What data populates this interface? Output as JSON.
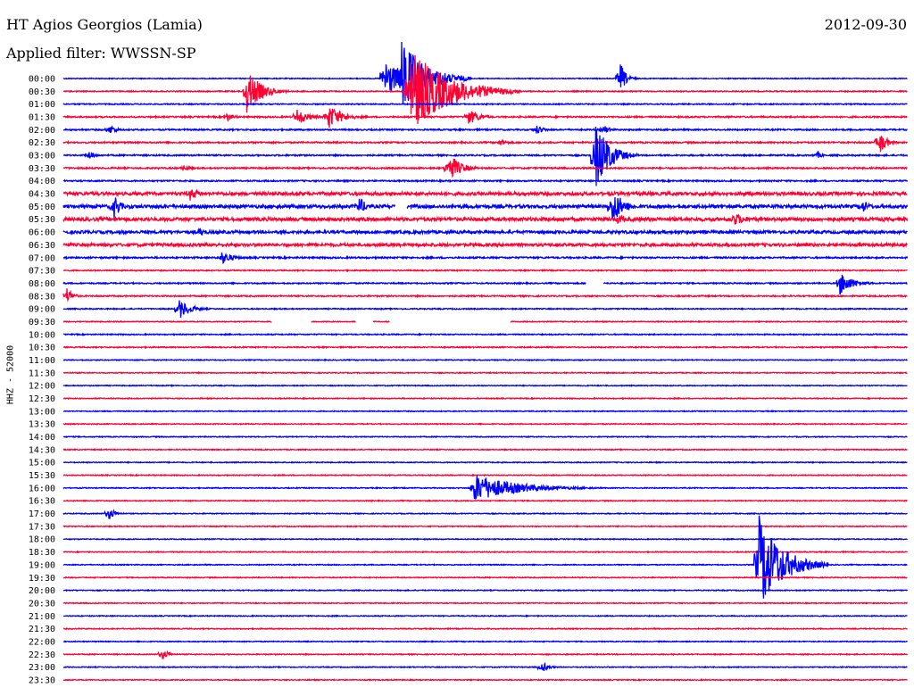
{
  "header": {
    "station": "HT Agios Georgios (Lamia)",
    "date": "2012-09-30",
    "filter": "Applied filter: WWSSN-SP"
  },
  "channel_label": "HHZ - 52000",
  "colors": {
    "even_hour": "#0000ff",
    "half_hour": "#ff0033",
    "background": "#ffffff"
  },
  "chart_data": {
    "type": "line",
    "description_kind": "helicorder",
    "ylabel": "HHZ - 52000",
    "rows": [
      "00:00",
      "00:30",
      "01:00",
      "01:30",
      "02:00",
      "02:30",
      "03:00",
      "03:30",
      "04:00",
      "04:30",
      "05:00",
      "05:30",
      "06:00",
      "06:30",
      "07:00",
      "07:30",
      "08:00",
      "08:30",
      "09:00",
      "09:30",
      "10:00",
      "10:30",
      "11:00",
      "11:30",
      "12:00",
      "12:30",
      "13:00",
      "13:30",
      "14:00",
      "14:30",
      "15:00",
      "15:30",
      "16:00",
      "16:30",
      "17:00",
      "17:30",
      "18:00",
      "18:30",
      "19:00",
      "19:30",
      "20:00",
      "20:30",
      "21:00",
      "21:30",
      "22:00",
      "22:30",
      "23:00",
      "23:30"
    ],
    "row_span_minutes": 30,
    "noise_level": [
      0.5,
      0.6,
      0.6,
      0.8,
      0.8,
      0.8,
      0.8,
      0.8,
      0.8,
      1.8,
      1.8,
      1.9,
      1.6,
      1.6,
      0.9,
      0.6,
      0.7,
      0.7,
      0.6,
      0.5,
      0.6,
      0.6,
      0.5,
      0.5,
      0.5,
      0.5,
      0.5,
      0.5,
      0.5,
      0.5,
      0.5,
      0.5,
      0.5,
      0.5,
      0.5,
      0.5,
      0.5,
      0.5,
      0.5,
      0.5,
      0.5,
      0.5,
      0.5,
      0.5,
      0.5,
      0.5,
      0.5,
      0.5
    ],
    "events": [
      {
        "row": 0,
        "minute": 11.4,
        "amplitude": 28,
        "duration_min": 1.4
      },
      {
        "row": 0,
        "minute": 19.8,
        "amplitude": 18,
        "duration_min": 0.6
      },
      {
        "row": 0,
        "minute": 12.0,
        "amplitude": 45,
        "duration_min": 2.5
      },
      {
        "row": 1,
        "minute": 6.5,
        "amplitude": 26,
        "duration_min": 1.5
      },
      {
        "row": 1,
        "minute": 12.3,
        "amplitude": 50,
        "duration_min": 4.0
      },
      {
        "row": 3,
        "minute": 8.3,
        "amplitude": 10,
        "duration_min": 1.2
      },
      {
        "row": 3,
        "minute": 9.4,
        "amplitude": 15,
        "duration_min": 1.5
      },
      {
        "row": 3,
        "minute": 14.4,
        "amplitude": 9,
        "duration_min": 1.2
      },
      {
        "row": 3,
        "minute": 5.8,
        "amplitude": 5,
        "duration_min": 0.8
      },
      {
        "row": 4,
        "minute": 1.6,
        "amplitude": 7,
        "duration_min": 0.7
      },
      {
        "row": 4,
        "minute": 16.8,
        "amplitude": 6,
        "duration_min": 0.8
      },
      {
        "row": 4,
        "minute": 19.2,
        "amplitude": 6,
        "duration_min": 0.7
      },
      {
        "row": 5,
        "minute": 29.0,
        "amplitude": 14,
        "duration_min": 0.8
      },
      {
        "row": 5,
        "minute": 15.5,
        "amplitude": 5,
        "duration_min": 0.7
      },
      {
        "row": 6,
        "minute": 0.9,
        "amplitude": 6,
        "duration_min": 0.6
      },
      {
        "row": 6,
        "minute": 18.9,
        "amplitude": 42,
        "duration_min": 1.5
      },
      {
        "row": 6,
        "minute": 26.8,
        "amplitude": 5,
        "duration_min": 0.5
      },
      {
        "row": 7,
        "minute": 13.7,
        "amplitude": 18,
        "duration_min": 1.2
      },
      {
        "row": 7,
        "minute": 4.2,
        "amplitude": 4,
        "duration_min": 0.9
      },
      {
        "row": 9,
        "minute": 4.5,
        "amplitude": 8,
        "duration_min": 1.0
      },
      {
        "row": 10,
        "minute": 1.8,
        "amplitude": 16,
        "duration_min": 0.6
      },
      {
        "row": 10,
        "minute": 10.5,
        "amplitude": 12,
        "duration_min": 0.8
      },
      {
        "row": 10,
        "minute": 19.5,
        "amplitude": 22,
        "duration_min": 1.2
      },
      {
        "row": 10,
        "minute": 28.4,
        "amplitude": 8,
        "duration_min": 0.8
      },
      {
        "row": 11,
        "minute": 19.7,
        "amplitude": 6,
        "duration_min": 1.0
      },
      {
        "row": 11,
        "minute": 23.8,
        "amplitude": 8,
        "duration_min": 1.5
      },
      {
        "row": 12,
        "minute": 4.8,
        "amplitude": 5,
        "duration_min": 1.2
      },
      {
        "row": 14,
        "minute": 5.6,
        "amplitude": 8,
        "duration_min": 1.2
      },
      {
        "row": 16,
        "minute": 27.6,
        "amplitude": 14,
        "duration_min": 1.4
      },
      {
        "row": 17,
        "minute": 0.1,
        "amplitude": 12,
        "duration_min": 0.6
      },
      {
        "row": 18,
        "minute": 4.1,
        "amplitude": 12,
        "duration_min": 1.2
      },
      {
        "row": 32,
        "minute": 14.6,
        "amplitude": 16,
        "duration_min": 4.5
      },
      {
        "row": 34,
        "minute": 1.6,
        "amplitude": 8,
        "duration_min": 0.7
      },
      {
        "row": 38,
        "minute": 24.7,
        "amplitude": 58,
        "duration_min": 2.5
      },
      {
        "row": 45,
        "minute": 3.5,
        "amplitude": 7,
        "duration_min": 0.7
      },
      {
        "row": 46,
        "minute": 17.0,
        "amplitude": 7,
        "duration_min": 0.7
      }
    ],
    "gaps": [
      {
        "row": 10,
        "start_min": 11.8,
        "end_min": 12.2
      },
      {
        "row": 16,
        "start_min": 18.6,
        "end_min": 19.2
      },
      {
        "row": 19,
        "start_min": 7.4,
        "end_min": 8.8
      },
      {
        "row": 19,
        "start_min": 10.4,
        "end_min": 11.0
      },
      {
        "row": 19,
        "start_min": 11.6,
        "end_min": 15.9
      }
    ],
    "grid": false,
    "legend": "none"
  }
}
